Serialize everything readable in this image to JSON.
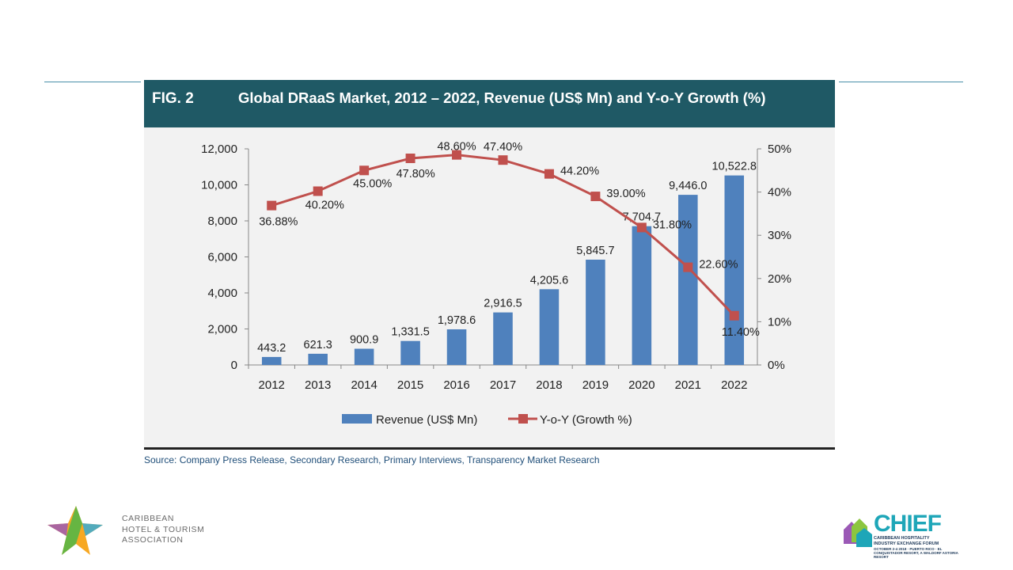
{
  "header": {
    "fig_label": "FIG. 2",
    "title": "Global DRaaS Market, 2012 – 2022, Revenue (US$ Mn) and Y-o-Y Growth (%)"
  },
  "source": "Source: Company Press Release, Secondary Research, Primary Interviews, Transparency Market Research",
  "colors": {
    "bar": "#4f81bd",
    "line": "#c0504d",
    "header_bg": "#1f5965",
    "panel_bg": "#f2f2f2"
  },
  "chart_data": {
    "type": "bar",
    "categories": [
      "2012",
      "2013",
      "2014",
      "2015",
      "2016",
      "2017",
      "2018",
      "2019",
      "2020",
      "2021",
      "2022"
    ],
    "series": [
      {
        "name": "Revenue (US$ Mn)",
        "type": "bar",
        "axis": "left",
        "values": [
          443.2,
          621.3,
          900.9,
          1331.5,
          1978.6,
          2916.5,
          4205.6,
          5845.7,
          7704.7,
          9446.0,
          10522.8
        ],
        "labels": [
          "443.2",
          "621.3",
          "900.9",
          "1,331.5",
          "1,978.6",
          "2,916.5",
          "4,205.6",
          "5,845.7",
          "7,704.7",
          "9,446.0",
          "10,522.8"
        ]
      },
      {
        "name": "Y-o-Y (Growth %)",
        "type": "line",
        "axis": "right",
        "values": [
          36.88,
          40.2,
          45.0,
          47.8,
          48.6,
          47.4,
          44.2,
          39.0,
          31.8,
          22.6,
          11.4
        ],
        "labels": [
          "36.88%",
          "40.20%",
          "45.00%",
          "47.80%",
          "48.60%",
          "47.40%",
          "44.20%",
          "39.00%",
          "31.80%",
          "22.60%",
          "11.40%"
        ]
      }
    ],
    "y_left": {
      "min": 0,
      "max": 12000,
      "ticks": [
        "0",
        "2,000",
        "4,000",
        "6,000",
        "8,000",
        "10,000",
        "12,000"
      ]
    },
    "y_right": {
      "min": 0,
      "max": 50,
      "ticks": [
        "0%",
        "10%",
        "20%",
        "30%",
        "40%",
        "50%"
      ]
    },
    "legend_position": "bottom",
    "grid": false
  },
  "logos": {
    "left_text": [
      "CARIBBEAN",
      "HOTEL & TOURISM",
      "ASSOCIATION"
    ],
    "right_word": "CHIEF",
    "right_sub": [
      "CARIBBEAN HOSPITALITY",
      "INDUSTRY EXCHANGE FORUM"
    ],
    "right_date": "OCTOBER 2-4 2018 · PUERTO RICO · EL CONQUISTADOR RESORT, A WALDORF ASTORIA RESORT"
  }
}
